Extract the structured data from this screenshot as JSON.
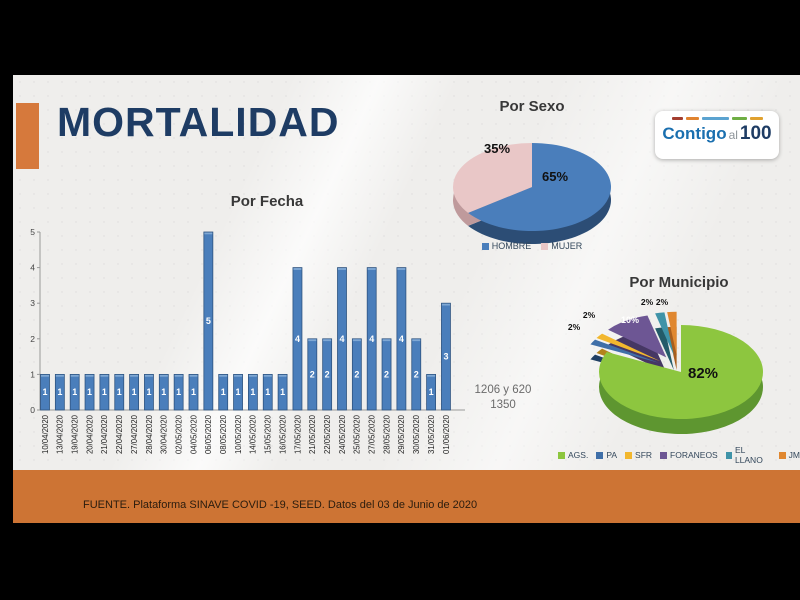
{
  "header": {
    "title": "MORTALIDAD"
  },
  "logo": {
    "contigo": "Contigo",
    "al": "al",
    "hundred": "100",
    "dash_colors": [
      "#a33d2f",
      "#e0832f",
      "#5ba3d0",
      "#6fae44",
      "#e0a12f"
    ]
  },
  "annotations": {
    "line1": "1206 y 620",
    "line2": "1350"
  },
  "footer": {
    "text": "FUENTE. Plataforma SINAVE COVID -19, SEED. Datos del 03 de Junio de 2020"
  },
  "colors": {
    "accent_orange": "#d6793c",
    "footer_orange": "#cd7434",
    "title_navy": "#1e3c64",
    "slide_bg": "#efeeec"
  },
  "chart_data": [
    {
      "id": "por_fecha",
      "type": "bar",
      "title": "Por Fecha",
      "categories": [
        "10/04/2020",
        "13/04/2020",
        "19/04/2020",
        "20/04/2020",
        "21/04/2020",
        "22/04/2020",
        "27/04/2020",
        "28/04/2020",
        "30/04/2020",
        "02/05/2020",
        "04/05/2020",
        "06/05/2020",
        "08/05/2020",
        "10/05/2020",
        "14/05/2020",
        "15/05/2020",
        "16/05/2020",
        "17/05/2020",
        "21/05/2020",
        "22/05/2020",
        "24/05/2020",
        "25/05/2020",
        "27/05/2020",
        "28/05/2020",
        "29/05/2020",
        "30/05/2020",
        "31/05/2020",
        "01/06/2020"
      ],
      "values": [
        1,
        1,
        1,
        1,
        1,
        1,
        1,
        1,
        1,
        1,
        1,
        5,
        1,
        1,
        1,
        1,
        1,
        4,
        2,
        2,
        4,
        2,
        4,
        2,
        4,
        2,
        1,
        3
      ],
      "ylim": [
        0,
        5
      ],
      "yticks": [
        0,
        1,
        2,
        3,
        4,
        5
      ],
      "grid": false,
      "bar_color": "#4a7ebb",
      "bar_edge": "#2f5480",
      "bar_top": "#7fa8d4",
      "value_label_color": "#ffffff"
    },
    {
      "id": "por_sexo",
      "type": "pie",
      "title": "Por Sexo",
      "legend_position": "bottom",
      "series": [
        {
          "name": "HOMBRE",
          "value": 65,
          "pct": "65%",
          "color": "#4a7ebb",
          "side": "#2c4d75"
        },
        {
          "name": "MUJER",
          "value": 35,
          "pct": "35%",
          "color": "#e9c7c7",
          "side": "#bf9a9c"
        }
      ]
    },
    {
      "id": "por_municipio",
      "type": "pie",
      "title": "Por Municipio",
      "legend_position": "bottom",
      "series": [
        {
          "name": "AGS.",
          "value": 82,
          "pct": "82%",
          "color": "#8dc63f",
          "side": "#5e9630",
          "explode": false
        },
        {
          "name": "PA",
          "value": 2,
          "pct": "2%",
          "color": "#3f6fa8",
          "side": "#203f63",
          "explode": true
        },
        {
          "name": "SFR",
          "value": 2,
          "pct": "2%",
          "color": "#f2b72e",
          "side": "#b3831c",
          "explode": true
        },
        {
          "name": "FORANEOS",
          "value": 10,
          "pct": "10%",
          "color": "#6d5694",
          "side": "#463764",
          "explode": true
        },
        {
          "name": "EL LLANO",
          "value": 2,
          "pct": "2%",
          "color": "#3f93a8",
          "side": "#235b69",
          "explode": true
        },
        {
          "name": "JM",
          "value": 2,
          "pct": "2%",
          "color": "#e0872f",
          "side": "#a85e1d",
          "explode": true
        }
      ]
    }
  ]
}
